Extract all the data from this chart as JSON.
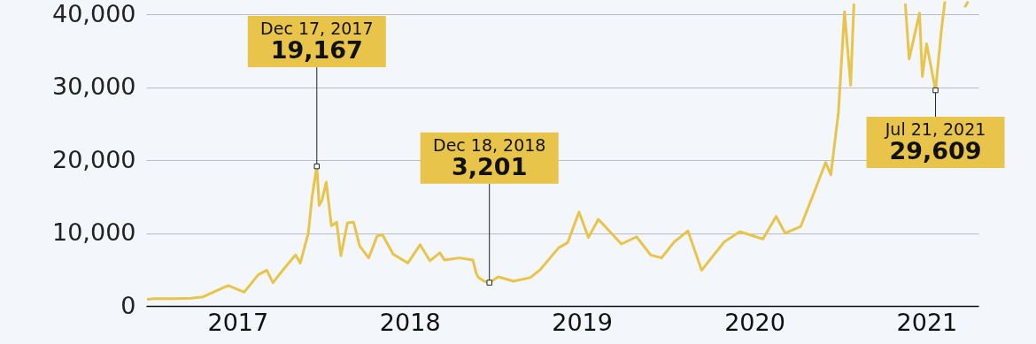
{
  "chart_data": {
    "type": "line",
    "x": [
      "2016-12-22",
      "2017-01-05",
      "2017-02-15",
      "2017-03-25",
      "2017-04-20",
      "2017-05-25",
      "2017-06-12",
      "2017-07-16",
      "2017-08-15",
      "2017-09-02",
      "2017-09-15",
      "2017-10-12",
      "2017-11-02",
      "2017-11-12",
      "2017-11-29",
      "2017-12-07",
      "2017-12-17",
      "2017-12-22",
      "2017-12-28",
      "2018-01-06",
      "2018-01-17",
      "2018-01-28",
      "2018-02-06",
      "2018-02-20",
      "2018-03-05",
      "2018-03-18",
      "2018-04-06",
      "2018-04-24",
      "2018-05-05",
      "2018-05-28",
      "2018-06-28",
      "2018-07-24",
      "2018-08-14",
      "2018-09-04",
      "2018-09-14",
      "2018-10-15",
      "2018-11-13",
      "2018-11-20",
      "2018-11-25",
      "2018-12-07",
      "2018-12-18",
      "2019-01-06",
      "2019-02-07",
      "2019-03-15",
      "2019-04-05",
      "2019-05-14",
      "2019-06-02",
      "2019-06-26",
      "2019-07-16",
      "2019-08-06",
      "2019-09-24",
      "2019-10-26",
      "2019-11-25",
      "2019-12-18",
      "2020-01-14",
      "2020-02-12",
      "2020-03-12",
      "2020-04-29",
      "2020-06-01",
      "2020-07-20",
      "2020-08-17",
      "2020-09-05",
      "2020-10-08",
      "2020-11-05",
      "2020-11-30",
      "2020-12-11",
      "2020-12-27",
      "2021-01-09",
      "2021-01-22",
      "2021-01-29",
      "2021-03-01",
      "2021-05-18",
      "2021-05-26",
      "2021-06-17",
      "2021-06-23",
      "2021-07-02",
      "2021-07-21",
      "2021-08-03",
      "2021-08-10",
      "2021-09-10",
      "2021-09-21",
      "2021-09-28"
    ],
    "series": [
      {
        "color": "#e8c44a",
        "values": [
          900,
          1000,
          1000,
          1050,
          1250,
          2300,
          2800,
          1900,
          4300,
          4900,
          3200,
          5400,
          7000,
          5900,
          10000,
          15000,
          19167,
          13800,
          14500,
          17000,
          11000,
          11500,
          6900,
          11400,
          11500,
          8200,
          6600,
          9600,
          9800,
          7100,
          5900,
          8400,
          6200,
          7300,
          6300,
          6600,
          6300,
          4500,
          3900,
          3400,
          3201,
          4000,
          3400,
          3900,
          5000,
          8000,
          8700,
          12900,
          9400,
          11900,
          8500,
          9500,
          7000,
          6600,
          8800,
          10300,
          4900,
          8800,
          10200,
          9200,
          12300,
          10000,
          10900,
          15500,
          19700,
          18000,
          26500,
          40400,
          30300,
          41500,
          null,
          41500,
          33900,
          40200,
          31500,
          36000,
          29609,
          38200,
          41800,
          null,
          41000,
          41800
        ]
      }
    ],
    "xlim": [
      "2016-12-20",
      "2021-10-20"
    ],
    "xticks": [
      {
        "value": "2017-07-02",
        "label": "2017"
      },
      {
        "value": "2018-07-02",
        "label": "2018"
      },
      {
        "value": "2019-07-02",
        "label": "2019"
      },
      {
        "value": "2020-07-02",
        "label": "2020"
      },
      {
        "value": "2021-07-02",
        "label": "2021"
      }
    ],
    "ylim": [
      0,
      42000
    ],
    "yticks": [
      0,
      {
        "value": 10000,
        "label": "10,000"
      },
      {
        "value": 20000,
        "label": "20,000"
      },
      {
        "value": 30000,
        "label": "30,000"
      },
      {
        "value": 40000,
        "label": "40,000"
      }
    ],
    "grid": "y",
    "annotations": [
      {
        "text": "Dec 17, 2017\n19,167",
        "x": "2017-12-17",
        "y": 19167
      },
      {
        "text": "Dec 18, 2018\n3,201",
        "x": "2018-12-18",
        "y": 3201
      },
      {
        "text": "Jul 21, 2021\n29,609",
        "x": "2021-07-21",
        "y": 29609
      }
    ]
  }
}
